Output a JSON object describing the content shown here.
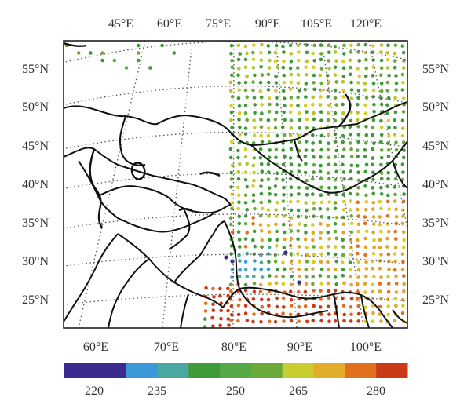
{
  "map": {
    "top_lon_labels": [
      "45°E",
      "60°E",
      "75°E",
      "90°E",
      "105°E",
      "120°E"
    ],
    "left_lat_labels": [
      "55°N",
      "50°N",
      "45°N",
      "40°N",
      "35°N",
      "30°N",
      "25°N"
    ],
    "right_lat_labels": [
      "55°N",
      "50°N",
      "45°N",
      "40°N",
      "35°N",
      "30°N",
      "25°N"
    ],
    "bottom_lon_labels": [
      "60°E",
      "70°E",
      "80°E",
      "90°E",
      "100°E"
    ],
    "projection": "conic (Lambert-like), dotted graticule",
    "borders": "country borders in black"
  },
  "colorbar": {
    "tick_labels": [
      "220",
      "235",
      "250",
      "265",
      "280"
    ],
    "colors": [
      "#3b2a8f",
      "#3b2a8f",
      "#3a9ad9",
      "#4aa8a0",
      "#3f9a3a",
      "#55a845",
      "#6aaa3a",
      "#c8cc2e",
      "#e2ad2a",
      "#e07020",
      "#c93a17"
    ]
  },
  "chart_data": {
    "type": "map-scatter",
    "description_scale_min": 212.5,
    "description_scale_max": 287.5,
    "regions": [
      {
        "name": "north-siberia",
        "value_range": [
          250,
          265
        ],
        "dominant": "green/yellow-green"
      },
      {
        "name": "mongolia-north-china",
        "value_range": [
          250,
          265
        ],
        "dominant": "green"
      },
      {
        "name": "tibetan-plateau-west",
        "value_range": [
          220,
          245
        ],
        "dominant": "blue/teal"
      },
      {
        "name": "india-nepal",
        "value_range": [
          275,
          285
        ],
        "dominant": "red/orange"
      },
      {
        "name": "southeast-china",
        "value_range": [
          265,
          278
        ],
        "dominant": "orange/yellow"
      }
    ]
  }
}
